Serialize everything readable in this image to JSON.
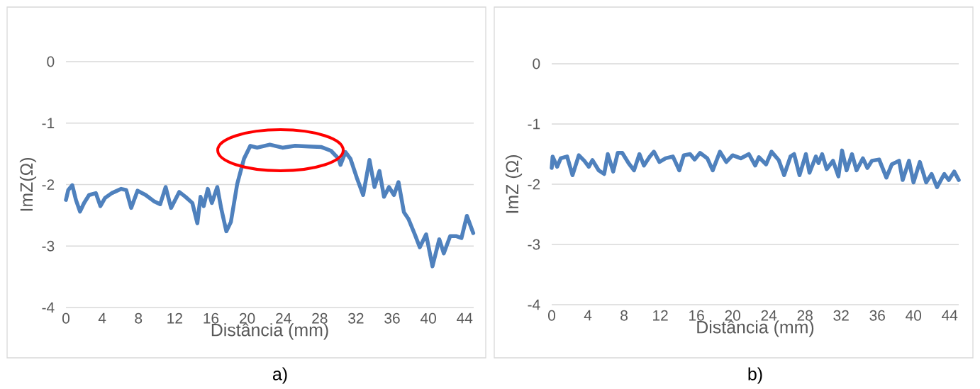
{
  "chart_data": [
    {
      "type": "line",
      "xlabel": "Distância (mm)",
      "ylabel": "ImZ(Ω)",
      "annotations": [
        "a)"
      ],
      "xlim": [
        0,
        45
      ],
      "ylim": [
        -4,
        0
      ],
      "xticks": [
        0,
        4,
        8,
        12,
        16,
        20,
        24,
        28,
        32,
        36,
        40,
        44
      ],
      "yticks": [
        -4,
        -3,
        -2,
        -1,
        0
      ],
      "grid": "y",
      "marker": "none",
      "line_style": "solid",
      "series": [
        {
          "color": "#4f81bd",
          "x": [
            0,
            0.25,
            0.7,
            1.1,
            1.55,
            2.0,
            2.55,
            3.3,
            3.8,
            4.3,
            5.05,
            6.1,
            6.65,
            7.2,
            7.9,
            8.8,
            9.7,
            10.4,
            11.0,
            11.6,
            12.5,
            13.2,
            13.95,
            14.5,
            14.85,
            15.2,
            15.65,
            16.1,
            16.7,
            17.15,
            17.7,
            18.2,
            18.9,
            19.65,
            20.35,
            21.1,
            22.5,
            23.9,
            25.3,
            26.8,
            28.2,
            29.25,
            30.1,
            30.3,
            30.85,
            31.4,
            32.1,
            32.8,
            33.5,
            34.05,
            34.6,
            35.1,
            35.65,
            36.2,
            36.7,
            37.3,
            37.8,
            38.5,
            39.05,
            39.75,
            40.45,
            41.2,
            41.7,
            42.4,
            43.1,
            43.65,
            44.25,
            44.95
          ],
          "values": [
            -2.25,
            -2.09,
            -2.01,
            -2.25,
            -2.44,
            -2.3,
            -2.17,
            -2.14,
            -2.35,
            -2.22,
            -2.14,
            -2.07,
            -2.09,
            -2.38,
            -2.1,
            -2.17,
            -2.27,
            -2.32,
            -2.04,
            -2.38,
            -2.12,
            -2.2,
            -2.3,
            -2.63,
            -2.2,
            -2.35,
            -2.07,
            -2.3,
            -2.04,
            -2.4,
            -2.76,
            -2.61,
            -1.99,
            -1.58,
            -1.37,
            -1.4,
            -1.35,
            -1.4,
            -1.37,
            -1.38,
            -1.39,
            -1.45,
            -1.58,
            -1.68,
            -1.47,
            -1.58,
            -1.89,
            -2.17,
            -1.6,
            -2.04,
            -1.78,
            -2.2,
            -2.04,
            -2.17,
            -1.96,
            -2.45,
            -2.56,
            -2.81,
            -3.02,
            -2.81,
            -3.33,
            -2.89,
            -3.12,
            -2.84,
            -2.84,
            -2.87,
            -2.51,
            -2.79
          ]
        }
      ]
    },
    {
      "type": "line",
      "xlabel": "Distância (mm)",
      "ylabel": "ImZ (Ω)",
      "annotations": [
        "b)"
      ],
      "xlim": [
        0,
        45
      ],
      "ylim": [
        -4,
        0
      ],
      "xticks": [
        0,
        4,
        8,
        12,
        16,
        20,
        24,
        28,
        32,
        36,
        40,
        44
      ],
      "yticks": [
        -4,
        -3,
        -2,
        -1,
        0
      ],
      "grid": "y",
      "marker": "none",
      "line_style": "solid",
      "series": [
        {
          "color": "#4f81bd",
          "x": [
            0,
            0.1,
            0.6,
            1.0,
            1.7,
            2.3,
            3.0,
            3.6,
            4.1,
            4.5,
            5.2,
            5.8,
            6.2,
            6.8,
            7.3,
            7.8,
            8.5,
            9.1,
            9.7,
            10.2,
            10.8,
            11.3,
            11.9,
            12.6,
            13.4,
            14.1,
            14.6,
            15.3,
            15.8,
            16.4,
            17.2,
            17.8,
            18.6,
            19.3,
            20.0,
            20.9,
            21.8,
            22.5,
            22.9,
            23.7,
            24.3,
            25.1,
            25.7,
            26.4,
            26.8,
            27.4,
            28.1,
            28.5,
            29.2,
            29.5,
            29.9,
            30.4,
            31.1,
            31.7,
            32.1,
            32.6,
            33.2,
            33.7,
            34.4,
            34.9,
            35.4,
            36.2,
            37.0,
            37.6,
            38.4,
            38.8,
            39.5,
            40.0,
            40.7,
            41.4,
            42.0,
            42.6,
            43.4,
            43.9,
            44.5,
            45.0
          ],
          "values": [
            -1.73,
            -1.54,
            -1.71,
            -1.57,
            -1.54,
            -1.85,
            -1.52,
            -1.61,
            -1.71,
            -1.6,
            -1.77,
            -1.83,
            -1.5,
            -1.79,
            -1.48,
            -1.48,
            -1.65,
            -1.77,
            -1.5,
            -1.69,
            -1.55,
            -1.46,
            -1.63,
            -1.57,
            -1.54,
            -1.77,
            -1.52,
            -1.5,
            -1.59,
            -1.48,
            -1.57,
            -1.77,
            -1.46,
            -1.63,
            -1.52,
            -1.57,
            -1.5,
            -1.69,
            -1.55,
            -1.67,
            -1.46,
            -1.6,
            -1.85,
            -1.54,
            -1.5,
            -1.85,
            -1.5,
            -1.81,
            -1.54,
            -1.65,
            -1.5,
            -1.75,
            -1.61,
            -1.87,
            -1.44,
            -1.77,
            -1.5,
            -1.77,
            -1.57,
            -1.73,
            -1.61,
            -1.59,
            -1.89,
            -1.67,
            -1.61,
            -1.93,
            -1.61,
            -1.97,
            -1.63,
            -1.97,
            -1.83,
            -2.05,
            -1.83,
            -1.93,
            -1.79,
            -1.93
          ]
        }
      ]
    }
  ]
}
